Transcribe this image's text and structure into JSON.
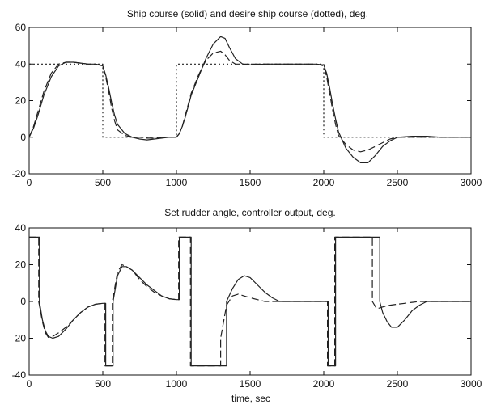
{
  "chart_data": [
    {
      "type": "line",
      "title": "Ship course (solid) and desire ship course (dotted), deg.",
      "xlabel": "",
      "ylabel": "",
      "xlim": [
        0,
        3000
      ],
      "ylim": [
        -20,
        60
      ],
      "xticks": [
        0,
        500,
        1000,
        1500,
        2000,
        2500,
        3000
      ],
      "yticks": [
        -20,
        0,
        20,
        40,
        60
      ],
      "grid": false,
      "series": [
        {
          "style": "solid",
          "x": [
            0,
            30,
            60,
            100,
            150,
            200,
            250,
            300,
            350,
            400,
            450,
            500,
            520,
            540,
            560,
            580,
            600,
            650,
            700,
            750,
            800,
            850,
            900,
            950,
            1000,
            1020,
            1040,
            1060,
            1080,
            1100,
            1150,
            1200,
            1250,
            1300,
            1330,
            1360,
            1400,
            1450,
            1500,
            1600,
            1700,
            1800,
            1900,
            1950,
            2000,
            2020,
            2040,
            2060,
            2080,
            2100,
            2150,
            2200,
            2250,
            2300,
            2350,
            2400,
            2450,
            2500,
            2600,
            2700,
            2800,
            2900,
            3000
          ],
          "y": [
            0,
            5,
            12,
            23,
            33,
            39,
            41,
            41,
            40.5,
            40,
            40,
            39,
            34,
            27,
            19,
            12,
            7,
            2,
            0,
            -1,
            -1.5,
            -1,
            -0.5,
            0,
            0,
            2,
            6,
            11,
            17,
            23,
            33,
            43,
            51,
            55,
            54,
            49,
            43,
            40,
            39.5,
            40,
            40,
            40,
            40,
            40,
            39.5,
            35,
            27,
            18,
            10,
            3,
            -6,
            -11,
            -14,
            -14,
            -10,
            -5,
            -2,
            0,
            0.5,
            0.5,
            0,
            0,
            0
          ]
        },
        {
          "style": "dashed",
          "x": [
            0,
            30,
            60,
            100,
            150,
            200,
            250,
            300,
            350,
            400,
            450,
            500,
            520,
            540,
            560,
            580,
            600,
            650,
            700,
            750,
            800,
            850,
            900,
            950,
            1000,
            1020,
            1040,
            1060,
            1080,
            1100,
            1150,
            1200,
            1250,
            1300,
            1330,
            1360,
            1400,
            1450,
            1500,
            1600,
            1700,
            1800,
            1900,
            1950,
            2000,
            2020,
            2040,
            2060,
            2080,
            2100,
            2150,
            2200,
            2250,
            2300,
            2350,
            2400,
            2450,
            2500,
            2600,
            2700,
            2800,
            2900,
            3000
          ],
          "y": [
            0,
            6,
            14,
            25,
            35,
            40,
            41,
            41,
            40.5,
            40,
            40,
            39,
            33,
            25,
            16,
            9,
            4,
            1,
            0,
            0,
            -0.5,
            -0.5,
            0,
            0,
            0,
            2,
            6,
            12,
            18,
            24,
            34,
            42,
            46,
            47,
            45,
            42,
            40,
            40,
            40,
            40,
            40,
            40,
            40,
            40,
            39,
            33,
            24,
            15,
            7,
            1,
            -4,
            -7,
            -8,
            -7,
            -5,
            -3,
            -1,
            0,
            0,
            0,
            0,
            0,
            0
          ]
        },
        {
          "style": "dotted",
          "x": [
            0,
            500,
            500,
            1000,
            1000,
            2000,
            2000,
            3000
          ],
          "y": [
            40,
            40,
            0,
            0,
            40,
            40,
            0,
            0
          ]
        }
      ]
    },
    {
      "type": "line",
      "title": "Set rudder angle, controller output, deg.",
      "xlabel": "time, sec",
      "ylabel": "",
      "xlim": [
        0,
        3000
      ],
      "ylim": [
        -40,
        40
      ],
      "xticks": [
        0,
        500,
        1000,
        1500,
        2000,
        2500,
        3000
      ],
      "yticks": [
        -40,
        -20,
        0,
        20,
        40
      ],
      "grid": false,
      "series": [
        {
          "style": "solid",
          "x": [
            0,
            70,
            70,
            90,
            110,
            130,
            160,
            200,
            250,
            300,
            350,
            400,
            450,
            500,
            520,
            520,
            570,
            570,
            600,
            630,
            660,
            700,
            750,
            800,
            850,
            900,
            950,
            1000,
            1020,
            1020,
            1100,
            1100,
            1340,
            1340,
            1380,
            1420,
            1460,
            1500,
            1550,
            1600,
            1650,
            1700,
            2000,
            2030,
            2030,
            2080,
            2080,
            2380,
            2380,
            2400,
            2430,
            2460,
            2500,
            2550,
            2600,
            2650,
            2700,
            3000
          ],
          "y": [
            35,
            35,
            0,
            -10,
            -16,
            -19,
            -20,
            -19,
            -15,
            -10,
            -6,
            -3,
            -1.5,
            -1,
            -1,
            -35,
            -35,
            0,
            14,
            19,
            19,
            17,
            13,
            9,
            6,
            3,
            1.5,
            1,
            1,
            35,
            35,
            -35,
            -35,
            0,
            7,
            12,
            14,
            13,
            9,
            5,
            2,
            0,
            0,
            0,
            -35,
            -35,
            35,
            35,
            0,
            -6,
            -11,
            -14,
            -14,
            -10,
            -5,
            -2,
            0,
            0
          ]
        },
        {
          "style": "dashed",
          "x": [
            0,
            65,
            65,
            90,
            110,
            130,
            160,
            200,
            250,
            300,
            350,
            400,
            450,
            500,
            515,
            515,
            565,
            565,
            600,
            630,
            660,
            700,
            750,
            800,
            850,
            900,
            950,
            1000,
            1015,
            1015,
            1095,
            1095,
            1300,
            1300,
            1340,
            1380,
            1420,
            1460,
            1500,
            1550,
            1600,
            1650,
            1700,
            2000,
            2025,
            2025,
            2075,
            2075,
            2330,
            2330,
            2360,
            2400,
            2450,
            2500,
            2550,
            2600,
            2650,
            2700,
            3000
          ],
          "y": [
            35,
            35,
            0,
            -11,
            -17,
            -19.5,
            -19,
            -17,
            -14,
            -10,
            -6,
            -3,
            -1.5,
            -1,
            -1,
            -35,
            -35,
            0,
            16,
            20,
            19,
            17,
            12,
            8,
            5,
            3,
            1.5,
            1,
            1,
            35,
            35,
            -35,
            -35,
            -20,
            -2,
            3,
            4,
            3,
            2,
            1,
            0,
            0,
            0,
            0,
            0,
            -35,
            -35,
            35,
            35,
            0,
            -4,
            -3,
            -2,
            -1.5,
            -1,
            -0.5,
            0,
            0,
            0
          ]
        }
      ]
    }
  ]
}
